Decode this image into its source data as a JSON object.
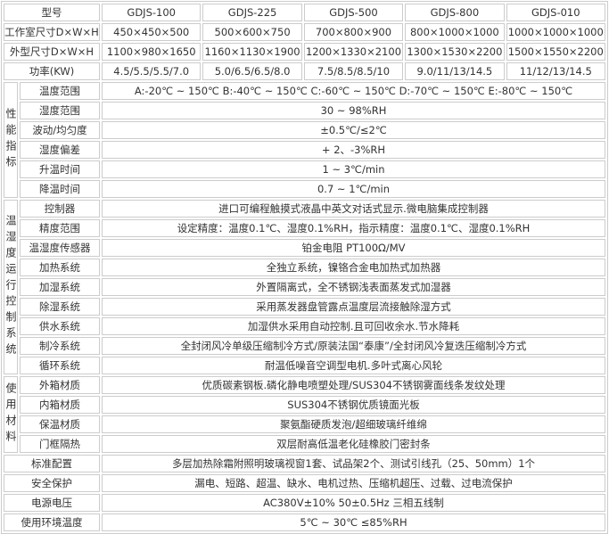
{
  "header": {
    "label": "型号",
    "models": [
      "GDJS-100",
      "GDJS-225",
      "GDJS-500",
      "GDJS-800",
      "GDJS-010"
    ]
  },
  "spec_rows": [
    {
      "label": "工作室尺寸D×W×H",
      "values": [
        "450×450×500",
        "500×600×750",
        "700×800×900",
        "800×1000×1000",
        "1000×1000×1000"
      ]
    },
    {
      "label": "外型尺寸D×W×H",
      "values": [
        "1100×980×1650",
        "1160×1130×1900",
        "1200×1330×2100",
        "1300×1530×2200",
        "1500×1550×2200"
      ]
    },
    {
      "label": "功率(KW)",
      "values": [
        "4.5/5.5/5.5/7.0",
        "5.0/6.5/6.5/8.0",
        "7.5/8.5/8.5/10",
        "9.0/11/13/14.5",
        "11/12/13/14.5"
      ]
    }
  ],
  "groups": [
    {
      "name": "性能指标",
      "rows": [
        {
          "label": "温度范围",
          "value": "A:-20℃ ~ 150℃ B:-40℃ ~ 150℃ C:-60℃ ~ 150℃ D:-70℃ ~ 150℃ E:-80℃ ~ 150℃"
        },
        {
          "label": "湿度范围",
          "value": "30 ~ 98%RH"
        },
        {
          "label": "波动/均匀度",
          "value": "±0.5℃/≤2℃"
        },
        {
          "label": "湿度偏差",
          "value": "+ 2、-3%RH"
        },
        {
          "label": "升温时间",
          "value": "1 ~ 3℃/min"
        },
        {
          "label": "降温时间",
          "value": "0.7 ~ 1℃/min"
        }
      ]
    },
    {
      "name": "温湿度运行控制系统",
      "rows": [
        {
          "label": "控制器",
          "value": "进口可编程触摸式液晶中英文对话式显示.微电脑集成控制器"
        },
        {
          "label": "精度范围",
          "value": "设定精度：温度0.1℃、湿度0.1%RH，指示精度：温度0.1℃、湿度0.1%RH"
        },
        {
          "label": "温湿度传感器",
          "value": "铂金电阻 PT100Ω/MV"
        },
        {
          "label": "加热系统",
          "value": "全独立系统，镍铬合金电加热式加热器"
        },
        {
          "label": "加湿系统",
          "value": "外置隔离式，全不锈钢浅表面蒸发式加湿器"
        },
        {
          "label": "除湿系统",
          "value": "采用蒸发器盘管露点温度层流接触除湿方式"
        },
        {
          "label": "供水系统",
          "value": "加湿供水采用自动控制.且可回收余水.节水降耗"
        },
        {
          "label": "制冷系统",
          "value": "全封闭风冷单级压缩制冷方式/原装法国“泰康”/全封闭风冷复迭压缩制冷方式"
        },
        {
          "label": "循环系统",
          "value": "耐温低噪音空调型电机.多叶式离心风轮"
        }
      ]
    },
    {
      "name": "使用材料",
      "rows": [
        {
          "label": "外箱材质",
          "value": "优质碳素钢板.磷化静电喷塑处理/SUS304不锈钢雾面线条发纹处理"
        },
        {
          "label": "内箱材质",
          "value": "SUS304不锈钢优质镜面光板"
        },
        {
          "label": "保温材质",
          "value": "聚氨酯硬质发泡/超细玻璃纤维绵"
        },
        {
          "label": "门框隔热",
          "value": "双层耐高低温老化硅橡胶门密封条"
        }
      ]
    }
  ],
  "footer_rows": [
    {
      "label": "标准配置",
      "value": "多层加热除霜附照明玻璃视窗1套、试品架2个、测试引线孔（25、50mm）1个"
    },
    {
      "label": "安全保护",
      "value": "漏电、短路、超温、缺水、电机过热、压缩机超压、过载、过电流保护"
    },
    {
      "label": "电源电压",
      "value": "AC380V±10%  50±0.5Hz  三相五线制"
    },
    {
      "label": "使用环境温度",
      "value": "5℃ ~ 30℃  ≤85%RH"
    }
  ]
}
